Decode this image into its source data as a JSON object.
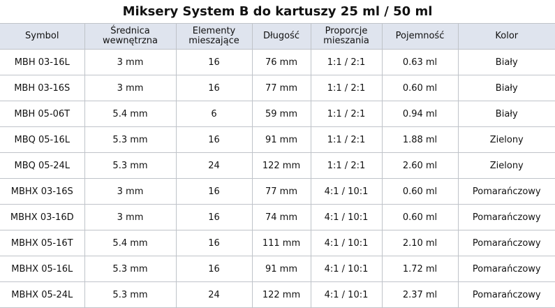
{
  "header": {
    "title": "Miksery System B do kartuszy 25 ml / 50 ml"
  },
  "table": {
    "columns": [
      "Symbol",
      "Średnica\nwewnętrzna",
      "Elementy\nmieszające",
      "Długość",
      "Proporcje\nmieszania",
      "Pojemność",
      "Kolor"
    ],
    "rows": [
      [
        "MBH 03-16L",
        "3 mm",
        "16",
        "76 mm",
        "1:1 / 2:1",
        "0.63 ml",
        "Biały"
      ],
      [
        "MBH 03-16S",
        "3 mm",
        "16",
        "77 mm",
        "1:1 / 2:1",
        "0.60 ml",
        "Biały"
      ],
      [
        "MBH 05-06T",
        "5.4 mm",
        "6",
        "59 mm",
        "1:1 / 2:1",
        "0.94 ml",
        "Biały"
      ],
      [
        "MBQ 05-16L",
        "5.3 mm",
        "16",
        "91 mm",
        "1:1 / 2:1",
        "1.88 ml",
        "Zielony"
      ],
      [
        "MBQ 05-24L",
        "5.3 mm",
        "24",
        "122 mm",
        "1:1 / 2:1",
        "2.60 ml",
        "Zielony"
      ],
      [
        "MBHX 03-16S",
        "3 mm",
        "16",
        "77 mm",
        "4:1 / 10:1",
        "0.60 ml",
        "Pomarańczowy"
      ],
      [
        "MBHX 03-16D",
        "3 mm",
        "16",
        "74 mm",
        "4:1 / 10:1",
        "0.60 ml",
        "Pomarańczowy"
      ],
      [
        "MBHX 05-16T",
        "5.4 mm",
        "16",
        "111 mm",
        "4:1 / 10:1",
        "2.10 ml",
        "Pomarańczowy"
      ],
      [
        "MBHX 05-16L",
        "5.3 mm",
        "16",
        "91 mm",
        "4:1 / 10:1",
        "1.72 ml",
        "Pomarańczowy"
      ],
      [
        "MBHX 05-24L",
        "5.3 mm",
        "24",
        "122 mm",
        "4:1 / 10:1",
        "2.37 ml",
        "Pomarańczowy"
      ]
    ]
  }
}
